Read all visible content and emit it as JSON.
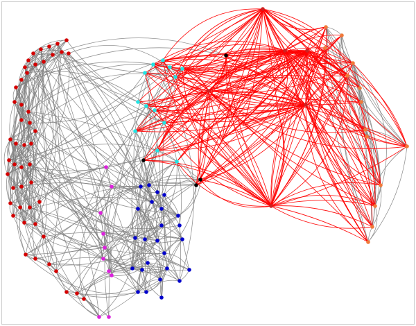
{
  "graph": {
    "palette": {
      "edge_default": "#808080",
      "edge_highlight": "#ff0000",
      "group_red": "#d40000",
      "group_cyan": "#22e4e4",
      "group_magenta": "#dd22dd",
      "group_blue": "#0000cc",
      "group_black": "#000000",
      "group_orange": "#f07a3a",
      "group_crimson": "#cc2222"
    },
    "groups": [
      {
        "name": "red",
        "color_key": "group_red",
        "node_count": 48
      },
      {
        "name": "cyan",
        "color_key": "group_cyan",
        "node_count": 13
      },
      {
        "name": "magenta",
        "color_key": "group_magenta",
        "node_count": 10
      },
      {
        "name": "blue",
        "color_key": "group_blue",
        "node_count": 25
      },
      {
        "name": "black",
        "color_key": "group_black",
        "node_count": 4
      },
      {
        "name": "orange",
        "color_key": "group_orange",
        "node_count": 15
      },
      {
        "name": "crimson",
        "color_key": "group_crimson",
        "node_count": 6
      }
    ],
    "highlighted_group": "crimson"
  }
}
